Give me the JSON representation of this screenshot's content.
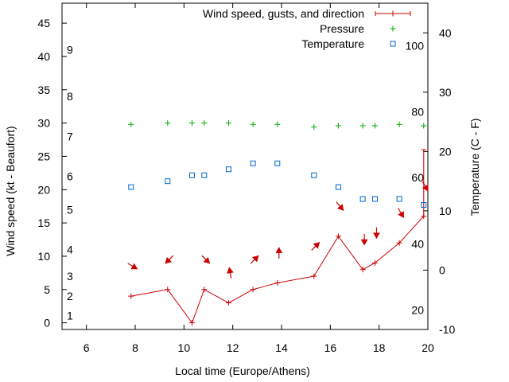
{
  "chart_data": {
    "type": "line",
    "title": "",
    "xlabel": "Local time (Europe/Athens)",
    "ylabel": "Wind speed (kt - Beaufort)",
    "y2label": "Temperature (C - F)",
    "xlim": [
      5,
      20
    ],
    "ylim": [
      -1,
      48
    ],
    "y2lim": [
      -10,
      45
    ],
    "x_ticks": [
      6,
      8,
      10,
      12,
      14,
      16,
      18,
      20
    ],
    "y_ticks": [
      0,
      5,
      10,
      15,
      20,
      25,
      30,
      35,
      40,
      45
    ],
    "y2_ticks": [
      -10,
      0,
      10,
      20,
      30,
      40
    ],
    "beaufort_labels": [
      {
        "text": "1",
        "y": 1.1
      },
      {
        "text": "2",
        "y": 4
      },
      {
        "text": "3",
        "y": 7
      },
      {
        "text": "4",
        "y": 11
      },
      {
        "text": "5",
        "y": 17
      },
      {
        "text": "6",
        "y": 22
      },
      {
        "text": "7",
        "y": 28
      },
      {
        "text": "8",
        "y": 34
      },
      {
        "text": "9",
        "y": 41
      }
    ],
    "fahrenheit_labels": [
      {
        "text": "20",
        "y2": -6.7
      },
      {
        "text": "40",
        "y2": 4.4
      },
      {
        "text": "60",
        "y2": 15.6
      },
      {
        "text": "80",
        "y2": 26.7
      },
      {
        "text": "100",
        "y2": 37.8
      }
    ],
    "legend": {
      "placement": "top-right",
      "entries": [
        "Wind speed, gusts, and direction",
        "Pressure",
        "Temperature"
      ]
    },
    "colors": {
      "wind": "#cc0000",
      "pressure": "#00aa00",
      "temperature": "#0066cc"
    },
    "series": [
      {
        "name": "Wind speed, gusts, and direction",
        "points": [
          {
            "x": 7.83,
            "y": 4,
            "dir": 300
          },
          {
            "x": 9.33,
            "y": 5,
            "dir": 45
          },
          {
            "x": 10.33,
            "y": 0,
            "dir": null
          },
          {
            "x": 10.83,
            "y": 5,
            "dir": 315
          },
          {
            "x": 11.83,
            "y": 3,
            "dir": 170
          },
          {
            "x": 12.83,
            "y": 5,
            "dir": 225
          },
          {
            "x": 13.83,
            "y": 6,
            "dir": 180
          },
          {
            "x": 15.33,
            "y": 7,
            "dir": 225
          },
          {
            "x": 16.33,
            "y": 13,
            "dir": 320
          },
          {
            "x": 17.33,
            "y": 8,
            "dir": 0
          },
          {
            "x": 17.83,
            "y": 9,
            "dir": 0
          },
          {
            "x": 18.83,
            "y": 12,
            "dir": 330
          },
          {
            "x": 19.83,
            "y": 16,
            "dir": 330,
            "gust": 26
          }
        ]
      },
      {
        "name": "Pressure",
        "x": [
          7.83,
          9.33,
          10.33,
          10.83,
          11.83,
          12.83,
          13.83,
          15.33,
          16.33,
          17.33,
          17.83,
          18.83,
          19.83
        ],
        "y": [
          29.8,
          30,
          30,
          30,
          30,
          29.8,
          29.8,
          29.4,
          29.6,
          29.6,
          29.6,
          29.8,
          29.6
        ]
      },
      {
        "name": "Temperature",
        "axis": "y2",
        "x": [
          7.83,
          9.33,
          10.33,
          10.83,
          11.83,
          12.83,
          13.83,
          15.33,
          16.33,
          17.33,
          17.83,
          18.83,
          19.83
        ],
        "y": [
          14,
          15,
          16,
          16,
          17,
          18,
          18,
          16,
          14,
          12,
          12,
          12,
          11
        ]
      }
    ]
  }
}
